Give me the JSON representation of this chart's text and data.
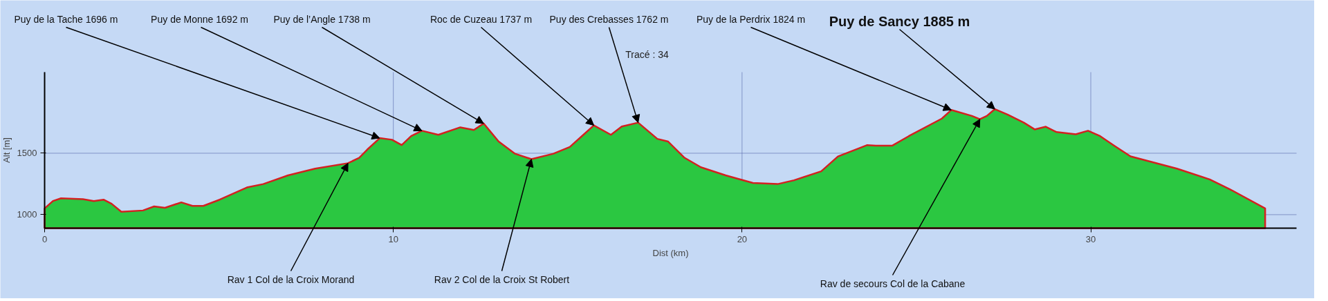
{
  "chart_data": {
    "type": "area",
    "title": "Tracé : 34",
    "xlabel": "Dist (km)",
    "ylabel": "Alt [m]",
    "x": [
      0,
      0.24,
      0.47,
      1.1,
      1.41,
      1.69,
      1.92,
      2.2,
      2.82,
      3.14,
      3.45,
      3.92,
      4.24,
      4.55,
      5.02,
      5.8,
      6.27,
      6.98,
      7.76,
      8.7,
      9.02,
      9.25,
      9.61,
      9.96,
      10.24,
      10.51,
      10.82,
      11.29,
      11.92,
      12.31,
      12.59,
      13.02,
      13.49,
      13.96,
      14.59,
      15.06,
      15.45,
      15.75,
      16.24,
      16.55,
      17.02,
      17.57,
      17.88,
      18.35,
      18.82,
      19.53,
      20.31,
      21.02,
      21.49,
      22.27,
      22.75,
      23.59,
      23.84,
      24.31,
      24.78,
      25.73,
      26.0,
      26.59,
      26.82,
      27.02,
      27.25,
      27.61,
      28.08,
      28.39,
      28.71,
      29.02,
      29.57,
      29.92,
      30.27,
      30.67,
      31.14,
      32.47,
      33.41,
      34.04,
      35.0
    ],
    "series": [
      {
        "color": "#2bc741",
        "values": [
          1051,
          1111,
          1133,
          1126,
          1111,
          1122,
          1089,
          1023,
          1034,
          1067,
          1056,
          1100,
          1071,
          1071,
          1122,
          1221,
          1249,
          1320,
          1375,
          1419,
          1463,
          1529,
          1623,
          1610,
          1566,
          1639,
          1683,
          1650,
          1711,
          1689,
          1742,
          1595,
          1496,
          1452,
          1496,
          1551,
          1650,
          1727,
          1650,
          1717,
          1749,
          1617,
          1595,
          1463,
          1386,
          1320,
          1258,
          1249,
          1280,
          1353,
          1474,
          1566,
          1562,
          1562,
          1639,
          1782,
          1852,
          1804,
          1777,
          1804,
          1859,
          1815,
          1749,
          1694,
          1716,
          1672,
          1654,
          1683,
          1639,
          1562,
          1474,
          1375,
          1287,
          1199,
          1051
        ]
      }
    ],
    "xlim": [
      0,
      35.9
    ],
    "ylim": [
      890,
      2160
    ],
    "xticks": [
      0,
      10,
      20,
      30
    ],
    "yticks": [
      1000,
      1500
    ],
    "grid": true,
    "annotations": [
      {
        "text": "Puy de la Tache 1696 m",
        "x": 9.61,
        "y": 1623
      },
      {
        "text": "Puy de  Monne 1692 m",
        "x": 10.82,
        "y": 1683
      },
      {
        "text": "Puy de l’Angle 1738 m",
        "x": 12.59,
        "y": 1742
      },
      {
        "text": "Roc de Cuzeau 1737 m",
        "x": 15.75,
        "y": 1727
      },
      {
        "text": "Puy des Crebasses 1762 m",
        "x": 17.02,
        "y": 1749
      },
      {
        "text": "Puy de la Perdrix 1824 m",
        "x": 26.0,
        "y": 1852
      },
      {
        "text": "Puy de Sancy 1885 m",
        "x": 27.25,
        "y": 1859
      },
      {
        "text": "Rav 1 Col de la Croix Morand",
        "x": 8.7,
        "y": 1419
      },
      {
        "text": "Rav 2 Col de la Croix St Robert",
        "x": 13.96,
        "y": 1452
      },
      {
        "text": "Rav de secours Col de la Cabane",
        "x": 26.82,
        "y": 1777
      }
    ]
  }
}
